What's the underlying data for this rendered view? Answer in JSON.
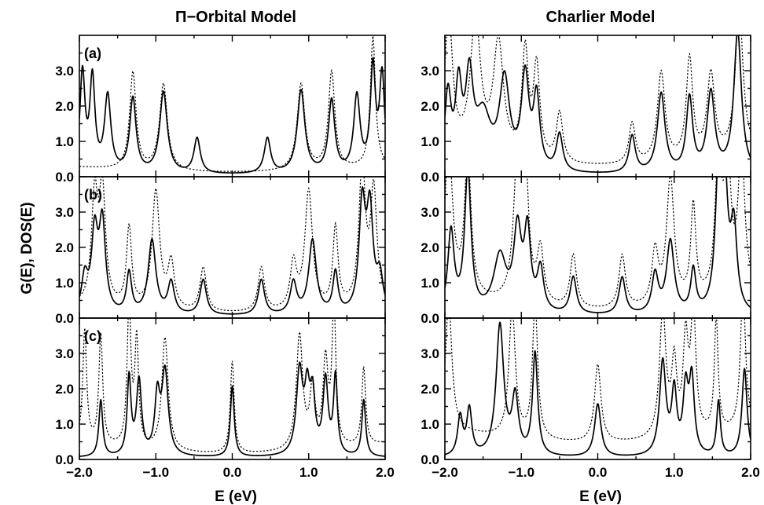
{
  "figure": {
    "left_title": "Π−Orbital Model",
    "right_title": "Charlier Model",
    "ylabel": "G(E), DOS(E)",
    "xlabel": "E (eV)"
  },
  "chart_data": {
    "type": "line",
    "xlim": [
      -2.0,
      2.0
    ],
    "ylim": [
      0.0,
      4.0
    ],
    "x_ticks": [
      "−2.0",
      "−1.0",
      "0.0",
      "1.0",
      "2.0"
    ],
    "y_ticks": [
      "0.0",
      "1.0",
      "2.0",
      "3.0"
    ],
    "series_styles": {
      "solid": "G(E)",
      "dotted": "DOS(E)"
    },
    "panels": [
      {
        "model": "Π−Orbital Model",
        "label": "(a)",
        "solid_floor": 0.05,
        "dotted_floor": 0.12,
        "dotted_extra": 0.15,
        "peaks": [
          [
            -1.96,
            2.8,
            0.04
          ],
          [
            -1.83,
            2.6,
            0.04
          ],
          [
            -1.63,
            2.15,
            0.05
          ],
          [
            -1.3,
            2.1,
            0.05
          ],
          [
            -0.9,
            2.3,
            0.06
          ],
          [
            -0.46,
            1.0,
            0.05
          ],
          [
            0.46,
            1.0,
            0.05
          ],
          [
            0.9,
            2.35,
            0.06
          ],
          [
            1.3,
            2.05,
            0.05
          ],
          [
            1.63,
            2.15,
            0.05
          ],
          [
            1.84,
            2.9,
            0.04
          ],
          [
            1.96,
            2.7,
            0.04
          ]
        ],
        "dotted_peaks": [
          [
            -1.3,
            2.75,
            0.05
          ],
          [
            -0.9,
            2.45,
            0.06
          ],
          [
            0.9,
            2.45,
            0.06
          ],
          [
            1.3,
            2.75,
            0.05
          ],
          [
            1.84,
            3.7,
            0.04
          ]
        ]
      },
      {
        "model": "Charlier Model",
        "label": "",
        "solid_floor": 0.04,
        "dotted_floor": 0.28,
        "dotted_extra": 0.35,
        "peaks": [
          [
            -1.96,
            2.1,
            0.05
          ],
          [
            -1.82,
            2.2,
            0.05
          ],
          [
            -1.68,
            2.45,
            0.06
          ],
          [
            -1.5,
            1.5,
            0.12
          ],
          [
            -1.22,
            2.5,
            0.08
          ],
          [
            -0.95,
            2.6,
            0.06
          ],
          [
            -0.8,
            2.0,
            0.05
          ],
          [
            -0.5,
            1.05,
            0.05
          ],
          [
            0.45,
            1.05,
            0.05
          ],
          [
            0.83,
            2.25,
            0.06
          ],
          [
            1.2,
            2.1,
            0.05
          ],
          [
            1.48,
            2.25,
            0.06
          ],
          [
            1.83,
            4.0,
            0.06
          ]
        ],
        "dotted_peaks": [
          [
            -1.95,
            3.9,
            0.06
          ],
          [
            -1.6,
            3.8,
            0.08
          ],
          [
            -1.3,
            3.2,
            0.08
          ],
          [
            -0.95,
            3.0,
            0.05
          ],
          [
            -0.8,
            2.6,
            0.05
          ],
          [
            -0.5,
            1.4,
            0.05
          ],
          [
            0.45,
            1.15,
            0.05
          ],
          [
            0.83,
            2.55,
            0.06
          ],
          [
            1.2,
            2.85,
            0.05
          ],
          [
            1.48,
            2.35,
            0.06
          ],
          [
            1.85,
            4.2,
            0.06
          ]
        ]
      },
      {
        "model": "Π−Orbital Model",
        "label": "(b)",
        "solid_floor": 0.05,
        "dotted_floor": 0.12,
        "dotted_extra": 0.2,
        "peaks": [
          [
            -1.93,
            1.0,
            0.05
          ],
          [
            -1.8,
            2.2,
            0.05
          ],
          [
            -1.7,
            2.5,
            0.05
          ],
          [
            -1.35,
            1.15,
            0.04
          ],
          [
            -1.05,
            2.1,
            0.06
          ],
          [
            -0.8,
            0.9,
            0.05
          ],
          [
            -0.38,
            1.0,
            0.05
          ],
          [
            0.38,
            1.0,
            0.05
          ],
          [
            0.8,
            0.9,
            0.05
          ],
          [
            1.05,
            2.1,
            0.06
          ],
          [
            1.35,
            1.15,
            0.04
          ],
          [
            1.7,
            3.0,
            0.05
          ],
          [
            1.8,
            2.8,
            0.05
          ],
          [
            1.93,
            1.0,
            0.05
          ]
        ],
        "dotted_peaks": [
          [
            -1.8,
            3.0,
            0.05
          ],
          [
            -1.7,
            3.2,
            0.05
          ],
          [
            -1.35,
            2.25,
            0.04
          ],
          [
            -1.0,
            3.35,
            0.06
          ],
          [
            -0.8,
            1.3,
            0.05
          ],
          [
            -0.38,
            1.25,
            0.05
          ],
          [
            0.38,
            1.25,
            0.05
          ],
          [
            0.8,
            1.3,
            0.05
          ],
          [
            1.0,
            3.35,
            0.06
          ],
          [
            1.35,
            2.25,
            0.04
          ],
          [
            1.7,
            4.0,
            0.05
          ],
          [
            1.85,
            3.2,
            0.05
          ]
        ]
      },
      {
        "model": "Charlier Model",
        "label": "",
        "solid_floor": 0.05,
        "dotted_floor": 0.2,
        "dotted_extra": 0.45,
        "peaks": [
          [
            -1.92,
            2.3,
            0.05
          ],
          [
            -1.7,
            4.0,
            0.05
          ],
          [
            -1.28,
            1.6,
            0.1
          ],
          [
            -1.05,
            2.25,
            0.06
          ],
          [
            -0.92,
            2.2,
            0.05
          ],
          [
            -0.75,
            1.2,
            0.05
          ],
          [
            -0.32,
            1.05,
            0.05
          ],
          [
            0.32,
            1.05,
            0.05
          ],
          [
            0.75,
            1.1,
            0.05
          ],
          [
            0.95,
            2.05,
            0.06
          ],
          [
            1.25,
            1.2,
            0.04
          ],
          [
            1.58,
            3.7,
            0.05
          ],
          [
            1.66,
            3.3,
            0.05
          ],
          [
            1.78,
            2.3,
            0.05
          ]
        ],
        "dotted_peaks": [
          [
            -1.95,
            4.2,
            0.06
          ],
          [
            -1.7,
            4.0,
            0.05
          ],
          [
            -1.05,
            3.9,
            0.06
          ],
          [
            -0.95,
            3.7,
            0.05
          ],
          [
            -0.75,
            1.5,
            0.05
          ],
          [
            -0.32,
            1.5,
            0.05
          ],
          [
            0.32,
            1.5,
            0.05
          ],
          [
            0.75,
            1.5,
            0.05
          ],
          [
            0.95,
            3.55,
            0.06
          ],
          [
            1.25,
            2.65,
            0.04
          ],
          [
            1.58,
            4.0,
            0.05
          ],
          [
            1.7,
            3.7,
            0.05
          ],
          [
            1.88,
            4.1,
            0.05
          ]
        ]
      },
      {
        "model": "Π−Orbital Model",
        "label": "(c)",
        "solid_floor": 0.05,
        "dotted_floor": 0.15,
        "dotted_extra": 0.3,
        "peaks": [
          [
            -1.72,
            1.6,
            0.03
          ],
          [
            -1.35,
            2.2,
            0.03
          ],
          [
            -1.22,
            2.1,
            0.04
          ],
          [
            -0.98,
            1.6,
            0.04
          ],
          [
            -0.88,
            2.35,
            0.05
          ],
          [
            0.0,
            2.0,
            0.03
          ],
          [
            0.88,
            2.35,
            0.05
          ],
          [
            0.98,
            1.6,
            0.04
          ],
          [
            1.05,
            1.55,
            0.04
          ],
          [
            1.22,
            2.1,
            0.04
          ],
          [
            1.35,
            2.2,
            0.03
          ],
          [
            1.72,
            1.6,
            0.03
          ]
        ],
        "dotted_peaks": [
          [
            -1.93,
            3.2,
            0.03
          ],
          [
            -1.72,
            3.1,
            0.03
          ],
          [
            -1.35,
            4.0,
            0.03
          ],
          [
            -1.25,
            3.0,
            0.03
          ],
          [
            -0.88,
            3.2,
            0.05
          ],
          [
            0.0,
            2.6,
            0.03
          ],
          [
            0.88,
            3.25,
            0.05
          ],
          [
            1.05,
            1.7,
            0.04
          ],
          [
            1.22,
            2.4,
            0.04
          ],
          [
            1.33,
            4.0,
            0.03
          ],
          [
            1.72,
            2.2,
            0.03
          ]
        ]
      },
      {
        "model": "Charlier Model",
        "label": "",
        "solid_floor": 0.04,
        "dotted_floor": 0.45,
        "dotted_extra": 0.4,
        "peaks": [
          [
            -1.8,
            1.1,
            0.04
          ],
          [
            -1.68,
            1.3,
            0.04
          ],
          [
            -1.28,
            3.7,
            0.06
          ],
          [
            -1.08,
            1.6,
            0.05
          ],
          [
            -0.82,
            2.9,
            0.04
          ],
          [
            0.0,
            1.5,
            0.05
          ],
          [
            0.85,
            2.65,
            0.05
          ],
          [
            1.0,
            1.75,
            0.04
          ],
          [
            1.15,
            1.8,
            0.04
          ],
          [
            1.23,
            2.1,
            0.04
          ],
          [
            1.58,
            1.55,
            0.03
          ],
          [
            1.92,
            2.5,
            0.04
          ]
        ],
        "dotted_peaks": [
          [
            -1.95,
            3.6,
            0.05
          ],
          [
            -1.12,
            3.7,
            0.05
          ],
          [
            -0.82,
            3.9,
            0.04
          ],
          [
            0.0,
            2.2,
            0.05
          ],
          [
            0.85,
            3.6,
            0.05
          ],
          [
            1.0,
            2.0,
            0.04
          ],
          [
            1.15,
            2.6,
            0.04
          ],
          [
            1.25,
            3.5,
            0.04
          ],
          [
            1.55,
            3.2,
            0.03
          ],
          [
            1.9,
            4.0,
            0.04
          ]
        ]
      }
    ]
  }
}
